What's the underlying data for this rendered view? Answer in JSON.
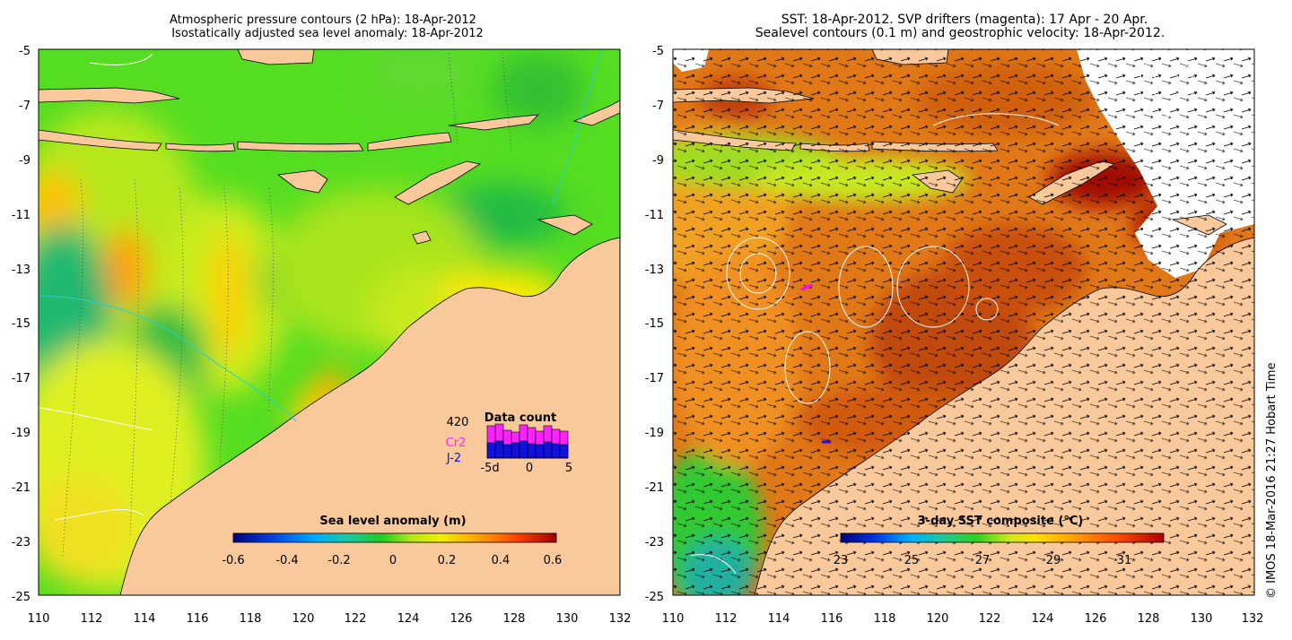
{
  "left_panel": {
    "title_line1": "Atmospheric pressure contours (2 hPa): 18-Apr-2012",
    "title_line2": "Isostatically adjusted sea level anomaly: 18-Apr-2012",
    "colorbar": {
      "title": "Sea level anomaly (m)",
      "ticks": [
        "-0.6",
        "-0.4",
        "-0.2",
        "0",
        "0.2",
        "0.4",
        "0.6"
      ]
    },
    "data_count": {
      "title": "Data count",
      "total": "420",
      "satellite_1": "Cr2",
      "satellite_2": "J-2",
      "axis_ticks": [
        "-5d",
        "0",
        "5"
      ],
      "colors": {
        "satellite_1": "#ff22ff",
        "satellite_2": "#1010e0"
      }
    }
  },
  "right_panel": {
    "title_line1": "SST: 18-Apr-2012. SVP drifters (magenta): 17 Apr - 20 Apr.",
    "title_line2": "Sealevel contours (0.1 m) and geostrophic velocity: 18-Apr-2012.",
    "colorbar": {
      "title": "3-day SST composite (°C)",
      "ticks": [
        "23",
        "25",
        "27",
        "29",
        "31"
      ]
    }
  },
  "axes": {
    "lat_ticks": [
      "-5",
      "-7",
      "-9",
      "-11",
      "-13",
      "-15",
      "-17",
      "-19",
      "-21",
      "-23",
      "-25"
    ],
    "lon_ticks": [
      "110",
      "112",
      "114",
      "116",
      "118",
      "120",
      "122",
      "124",
      "126",
      "128",
      "130",
      "132"
    ]
  },
  "credit": "© IMOS 18-Mar-2016 21:27 Hobart Time",
  "colors": {
    "land": "#f9c99b",
    "ocean_left": "#55dd22",
    "ocean_right": "#e07818"
  }
}
